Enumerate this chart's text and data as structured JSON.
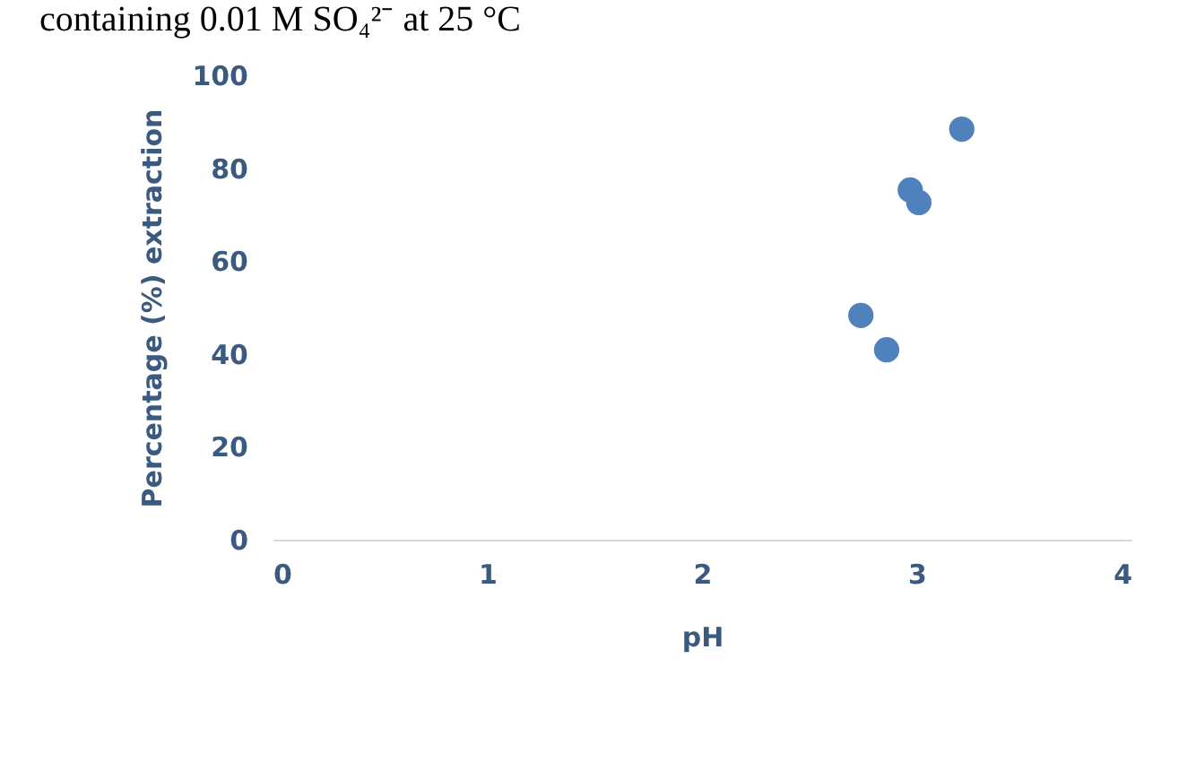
{
  "chart_data": {
    "type": "scatter",
    "title": "containing 0.01 M SO₄²⁻ at 25 °C",
    "xlabel": "pH",
    "ylabel": "Percentage (%) extraction",
    "x": [
      3.21,
      2.97,
      3.01,
      2.74,
      2.86
    ],
    "series": [
      {
        "color": "#4f81bd",
        "values": [
          88.4,
          75.3,
          72.6,
          48.3,
          40.9
        ]
      }
    ],
    "xlim": [
      0,
      4
    ],
    "xticks": [
      0,
      1,
      2,
      3,
      4
    ],
    "ylim": [
      0,
      100
    ],
    "yticks": [
      0,
      20,
      40,
      60,
      80,
      100
    ],
    "grid": false,
    "marker": "circle"
  }
}
